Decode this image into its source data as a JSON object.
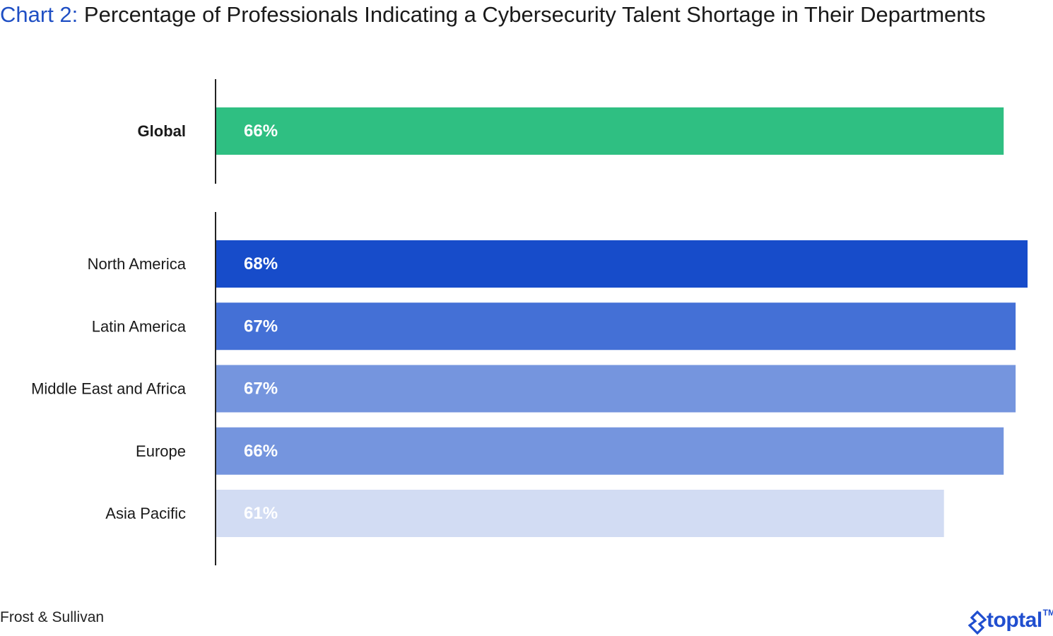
{
  "title": {
    "prefix": "Chart 2:",
    "text": "Percentage of Professionals Indicating a Cybersecurity Talent Shortage in Their Departments"
  },
  "source": "Frost & Sullivan",
  "logo": {
    "text": "toptal",
    "tm": "TM"
  },
  "chart_data": {
    "type": "bar",
    "orientation": "horizontal",
    "title": "Percentage of Professionals Indicating a Cybersecurity Talent Shortage in Their Departments",
    "xlabel": "",
    "ylabel": "",
    "xlim": [
      0,
      68
    ],
    "grid": false,
    "legend": "none",
    "groups": [
      {
        "categories": [
          "Global"
        ],
        "values": [
          66
        ],
        "labels": [
          "66%"
        ],
        "colors": [
          "#2fbf82"
        ],
        "label_colors": [
          "#ffffff"
        ],
        "bold_categories": true
      },
      {
        "categories": [
          "North America",
          "Latin America",
          "Middle East and Africa",
          "Europe",
          "Asia Pacific"
        ],
        "values": [
          68,
          67,
          67,
          66,
          61
        ],
        "labels": [
          "68%",
          "67%",
          "67%",
          "66%",
          "61%"
        ],
        "colors": [
          "#174cca",
          "#4470d6",
          "#7595de",
          "#7595de",
          "#d2dcf3"
        ],
        "label_colors": [
          "#ffffff",
          "#ffffff",
          "#ffffff",
          "#ffffff",
          "#ffffff"
        ],
        "bold_categories": false
      }
    ]
  }
}
